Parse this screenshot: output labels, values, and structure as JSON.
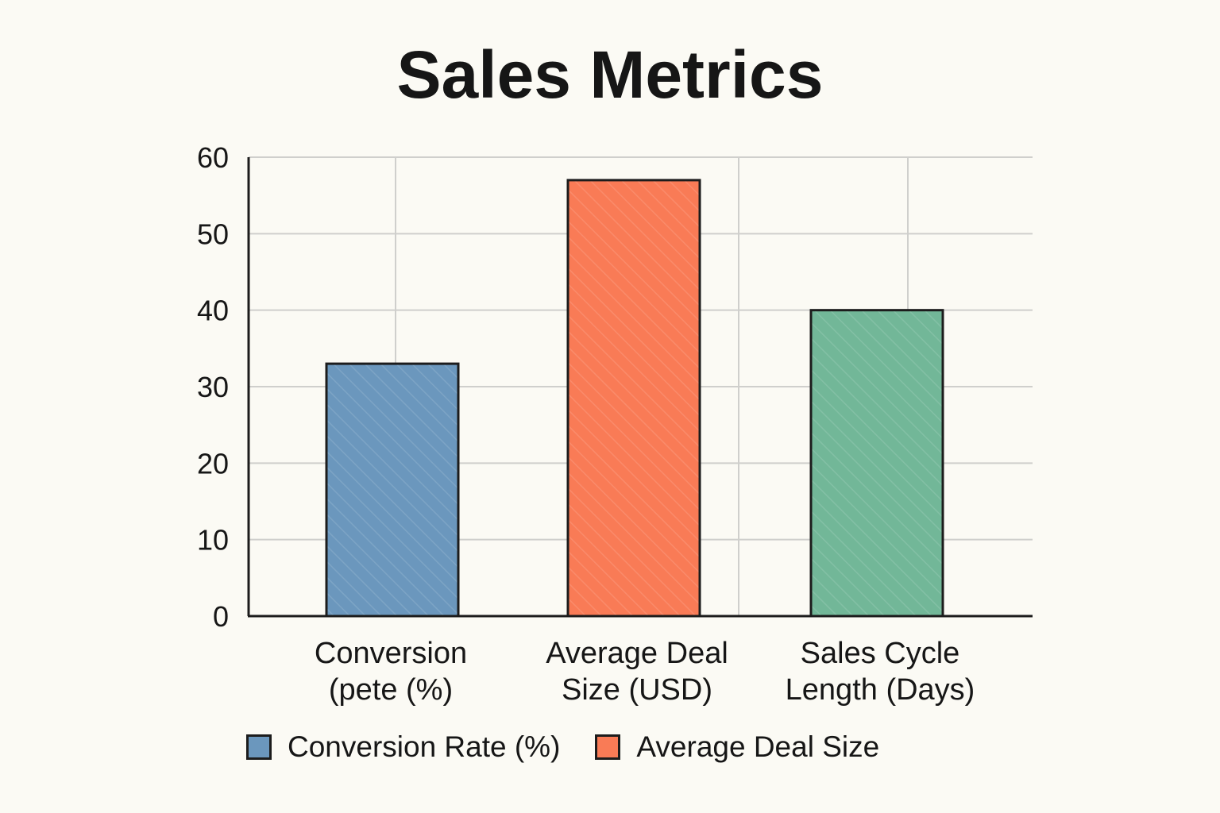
{
  "chart_data": {
    "type": "bar",
    "title": "Sales Metrics",
    "xlabel": "",
    "ylabel": "",
    "ylim": [
      0,
      60
    ],
    "yticks": [
      0,
      10,
      20,
      30,
      40,
      50,
      60
    ],
    "grid": true,
    "categories": [
      {
        "lines": [
          "Conversion",
          "(pete (%)"
        ]
      },
      {
        "lines": [
          "Average Deal",
          "Size (USD)"
        ]
      },
      {
        "lines": [
          "Sales Cycle",
          "Length (Days)"
        ]
      }
    ],
    "values": [
      33,
      57,
      40
    ],
    "colors": [
      "#6b97bd",
      "#f97b56",
      "#72b798"
    ],
    "legend": [
      {
        "label": "Conversion Rate (%)",
        "color": "#6b97bd"
      },
      {
        "label": "Average Deal Size",
        "color": "#f97b56"
      }
    ],
    "legend_position": "bottom"
  }
}
